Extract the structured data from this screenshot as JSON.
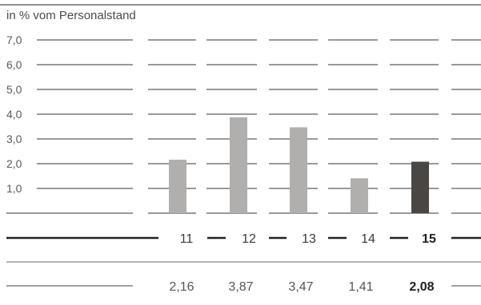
{
  "chart_data": {
    "type": "bar",
    "unit_label": "in % vom Personalstand",
    "categories": [
      "11",
      "12",
      "13",
      "14",
      "15"
    ],
    "values": [
      2.16,
      3.87,
      3.47,
      1.41,
      2.08
    ],
    "value_labels": [
      "2,16",
      "3,87",
      "3,47",
      "1,41",
      "2,08"
    ],
    "highlight_index": 4,
    "yticks": [
      "7,0",
      "6,0",
      "5,0",
      "4,0",
      "3,0",
      "2,0",
      "1,0"
    ],
    "ylim": [
      0,
      7
    ],
    "grid": true,
    "colors": {
      "bar": "#b0afad",
      "highlight": "#4a4644",
      "grid": "#333333",
      "axis": "#222222"
    }
  }
}
